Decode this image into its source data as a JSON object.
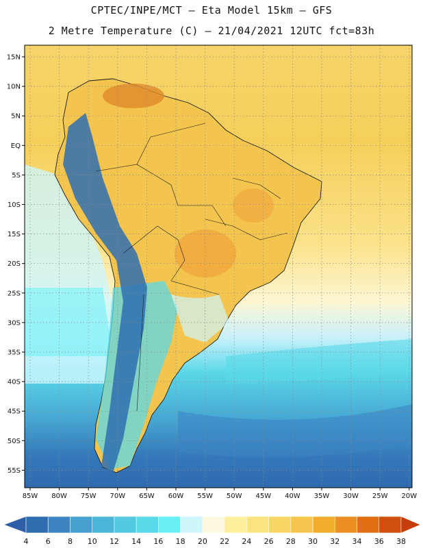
{
  "header": {
    "line1": "CPTEC/INPE/MCT –  Eta Model 15km – GFS",
    "line2": "2 Metre Temperature (C) – 21/04/2021 12UTC fct=83h"
  },
  "map": {
    "lat_labels": [
      "15N",
      "10N",
      "5N",
      "EQ",
      "5S",
      "10S",
      "15S",
      "20S",
      "25S",
      "30S",
      "35S",
      "40S",
      "45S",
      "50S",
      "55S"
    ],
    "lon_labels": [
      "85W",
      "80W",
      "75W",
      "70W",
      "65W",
      "60W",
      "55W",
      "50W",
      "45W",
      "40W",
      "35W",
      "30W",
      "25W",
      "20W"
    ],
    "frame_color": "#000000",
    "grid_style": "dotted"
  },
  "colorbar": {
    "labels": [
      "4",
      "6",
      "8",
      "10",
      "12",
      "14",
      "16",
      "18",
      "20",
      "22",
      "24",
      "26",
      "28",
      "30",
      "32",
      "34",
      "36",
      "38"
    ],
    "colors": [
      "#2f6fb0",
      "#3c84c2",
      "#46a0cf",
      "#4bb6d9",
      "#52c9e1",
      "#5ad9e8",
      "#68f0f5",
      "#cdf6fd",
      "#fdf9df",
      "#fdf09c",
      "#fae380",
      "#f7d665",
      "#f5c54d",
      "#f2ae2a",
      "#ec8e24",
      "#e36d12",
      "#cf4f0c"
    ],
    "low_end_color": "#2d5fa8",
    "high_end_color": "#c43d0a"
  }
}
